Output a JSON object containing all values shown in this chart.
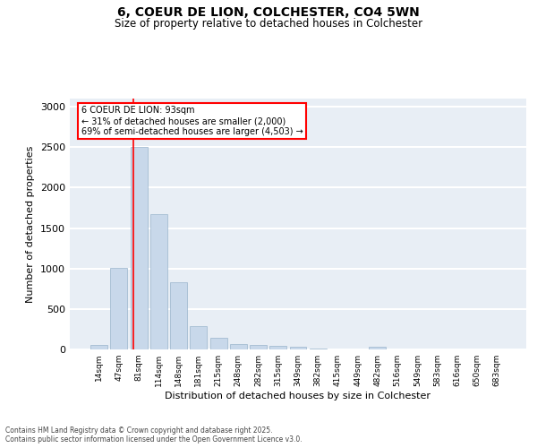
{
  "title_line1": "6, COEUR DE LION, COLCHESTER, CO4 5WN",
  "title_line2": "Size of property relative to detached houses in Colchester",
  "xlabel": "Distribution of detached houses by size in Colchester",
  "ylabel": "Number of detached properties",
  "categories": [
    "14sqm",
    "47sqm",
    "81sqm",
    "114sqm",
    "148sqm",
    "181sqm",
    "215sqm",
    "248sqm",
    "282sqm",
    "315sqm",
    "349sqm",
    "382sqm",
    "415sqm",
    "449sqm",
    "482sqm",
    "516sqm",
    "549sqm",
    "583sqm",
    "616sqm",
    "650sqm",
    "683sqm"
  ],
  "values": [
    60,
    1010,
    2500,
    1670,
    830,
    290,
    140,
    65,
    55,
    40,
    30,
    15,
    0,
    0,
    30,
    0,
    0,
    0,
    0,
    0,
    0
  ],
  "bar_color": "#c8d8ea",
  "bar_edge_color": "#9ab5cc",
  "background_color": "#e8eef5",
  "ylim": [
    0,
    3100
  ],
  "yticks": [
    0,
    500,
    1000,
    1500,
    2000,
    2500,
    3000
  ],
  "annotation_text": "6 COEUR DE LION: 93sqm\n← 31% of detached houses are smaller (2,000)\n69% of semi-detached houses are larger (4,503) →",
  "red_line_x": 1.72,
  "footer_line1": "Contains HM Land Registry data © Crown copyright and database right 2025.",
  "footer_line2": "Contains public sector information licensed under the Open Government Licence v3.0."
}
